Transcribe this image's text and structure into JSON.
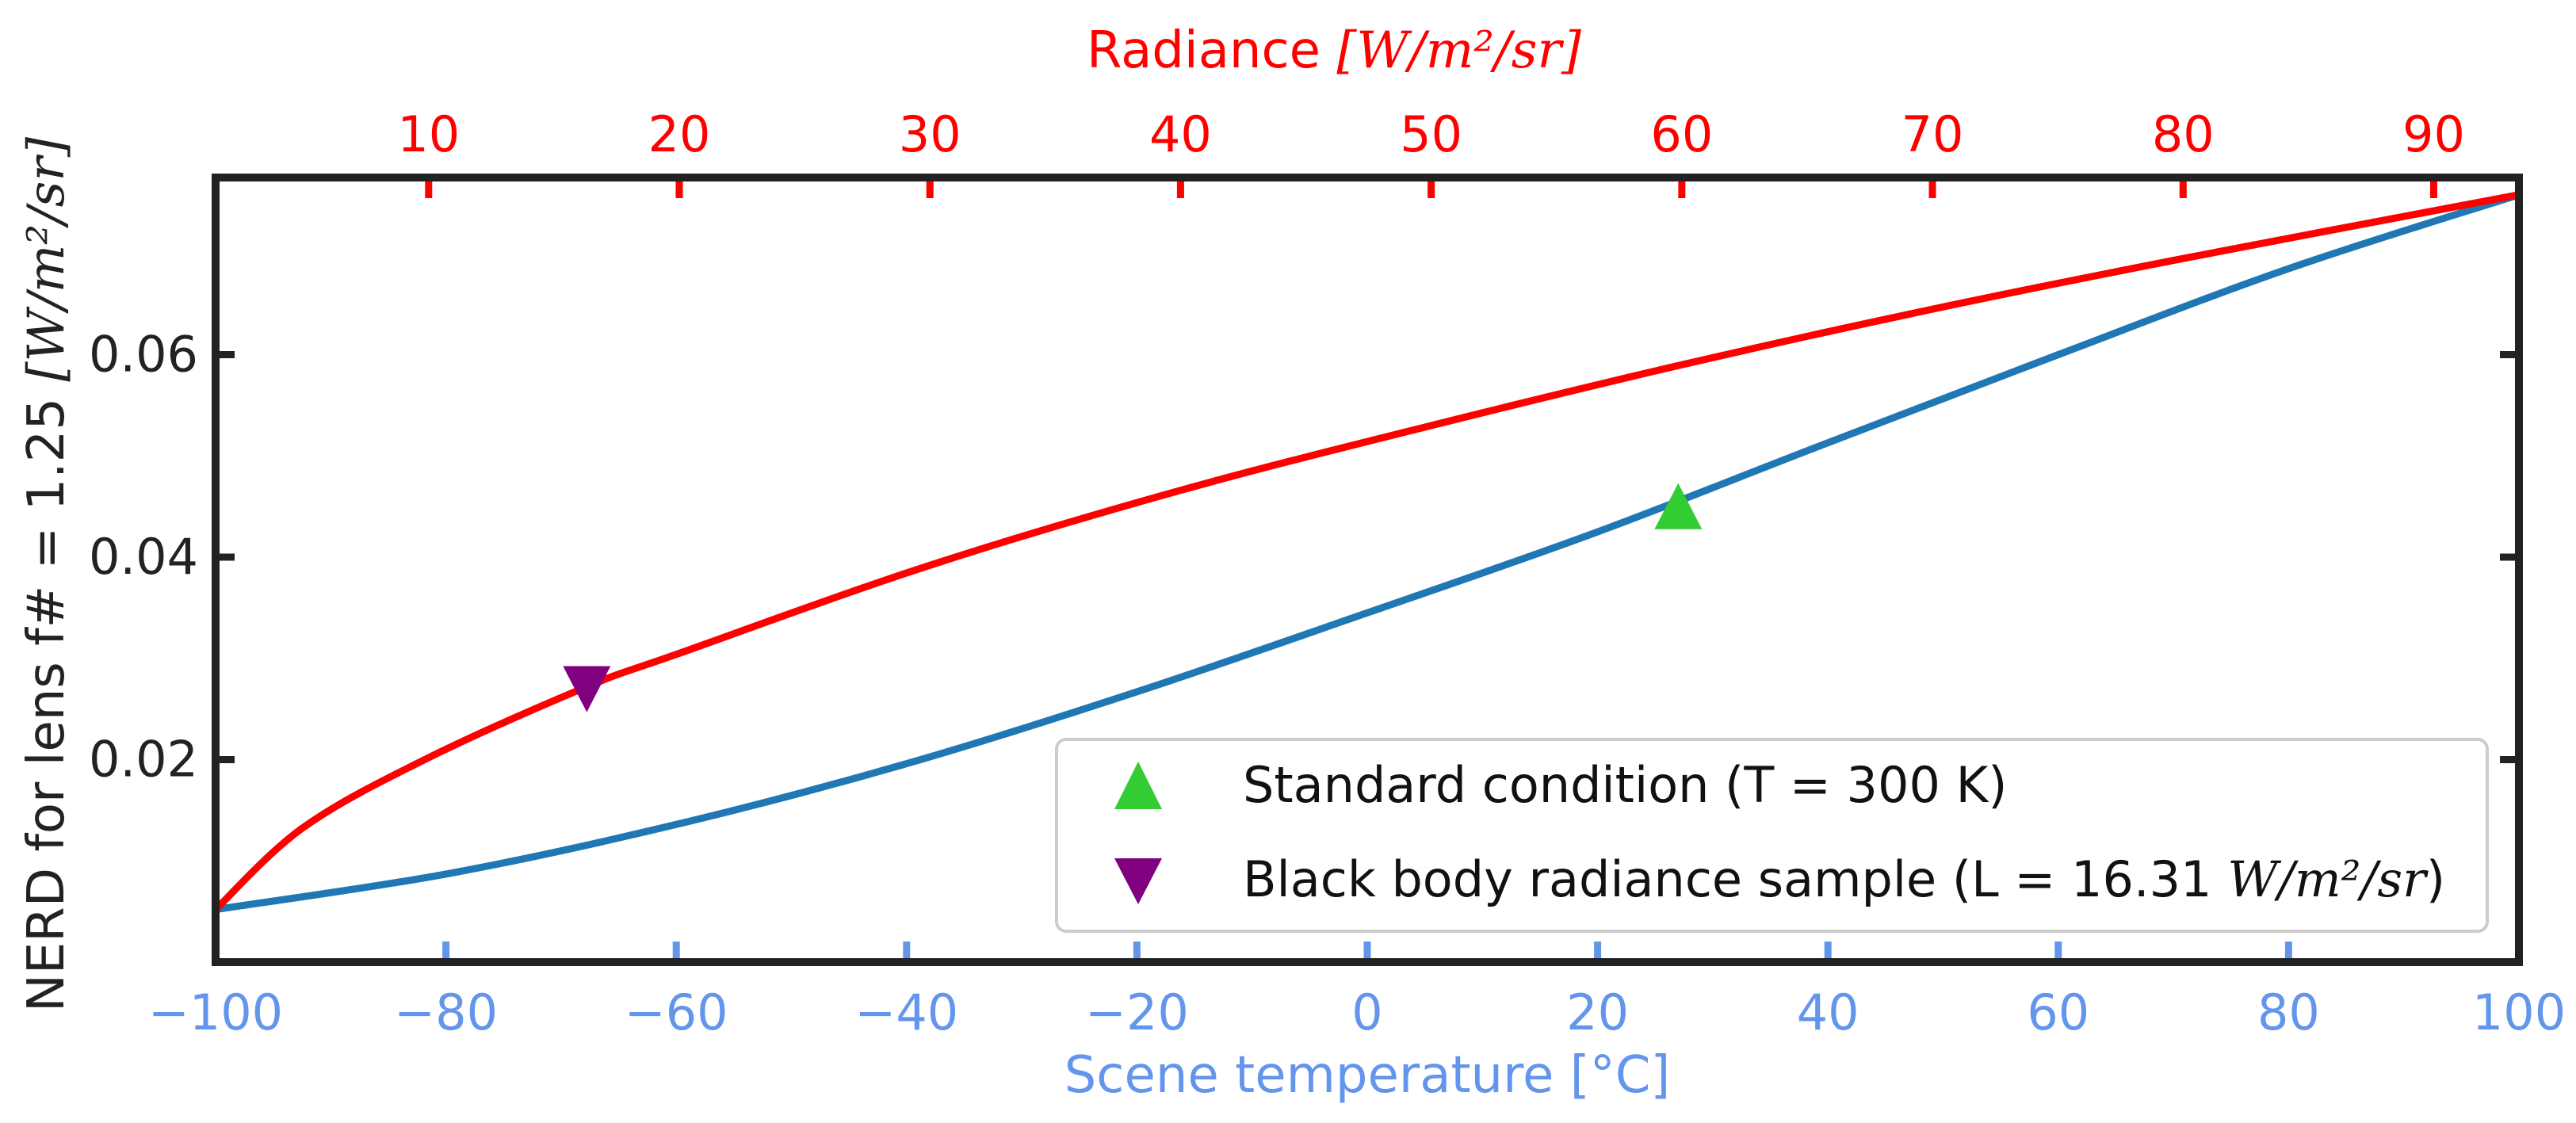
{
  "chart_data": {
    "type": "line",
    "title": "",
    "bottom_axis": {
      "label": "Scene temperature [°C]",
      "range": [
        -100,
        100
      ],
      "ticks": [
        -100,
        -80,
        -60,
        -40,
        -20,
        0,
        20,
        40,
        60,
        80,
        100
      ],
      "tick_labels": [
        "−100",
        "−80",
        "−60",
        "−40",
        "−20",
        "0",
        "20",
        "40",
        "60",
        "80",
        "100"
      ],
      "color": "#6495ed"
    },
    "top_axis": {
      "label_main": "Radiance ",
      "label_units": "[W/m²/sr]",
      "ticks": [
        10,
        20,
        30,
        40,
        50,
        60,
        70,
        80,
        90
      ],
      "tick_labels": [
        "10",
        "20",
        "30",
        "40",
        "50",
        "60",
        "70",
        "80",
        "90"
      ],
      "range": [
        1.5,
        93.4
      ],
      "color": "#ff0000"
    },
    "left_axis": {
      "label_main": "NERD for lens f# = 1.25 ",
      "label_units": "[W/m²/sr]",
      "range": [
        0.0,
        0.0775
      ],
      "ticks": [
        0.02,
        0.04,
        0.06
      ],
      "tick_labels": [
        "0.02",
        "0.04",
        "0.06"
      ]
    },
    "series": [
      {
        "axis": "bottom",
        "color": "#1f77b4",
        "x": [
          -100,
          -80,
          -60,
          -40,
          -20,
          0,
          20,
          40,
          60,
          80,
          100
        ],
        "y": [
          0.0052,
          0.0087,
          0.0136,
          0.0196,
          0.0267,
          0.0345,
          0.0425,
          0.0513,
          0.06,
          0.0685,
          0.0758
        ]
      },
      {
        "axis": "top",
        "color": "#ff0000",
        "x": [
          1.5,
          5,
          10,
          16.31,
          20,
          30,
          40,
          50,
          60,
          70,
          80,
          93.4
        ],
        "y": [
          0.0052,
          0.0133,
          0.0202,
          0.0272,
          0.0305,
          0.0392,
          0.0466,
          0.053,
          0.059,
          0.0645,
          0.0695,
          0.0758
        ]
      }
    ],
    "markers": [
      {
        "name": "standard-condition",
        "axis": "bottom",
        "x": 27,
        "y": 0.0448,
        "shape": "triangle-up",
        "color": "#32cd32"
      },
      {
        "name": "black-body-sample",
        "axis": "top",
        "x": 16.31,
        "y": 0.0272,
        "shape": "triangle-down",
        "color": "#800080"
      }
    ],
    "legend": {
      "position": "lower-right",
      "entries": [
        {
          "shape": "triangle-up",
          "color": "#32cd32",
          "label": "Standard condition (T = 300 K)"
        },
        {
          "shape": "triangle-down",
          "color": "#800080",
          "label_main": "Black body radiance sample (L = 16.31 ",
          "label_units": "W/m²/sr",
          "label_end": ")"
        }
      ]
    }
  }
}
